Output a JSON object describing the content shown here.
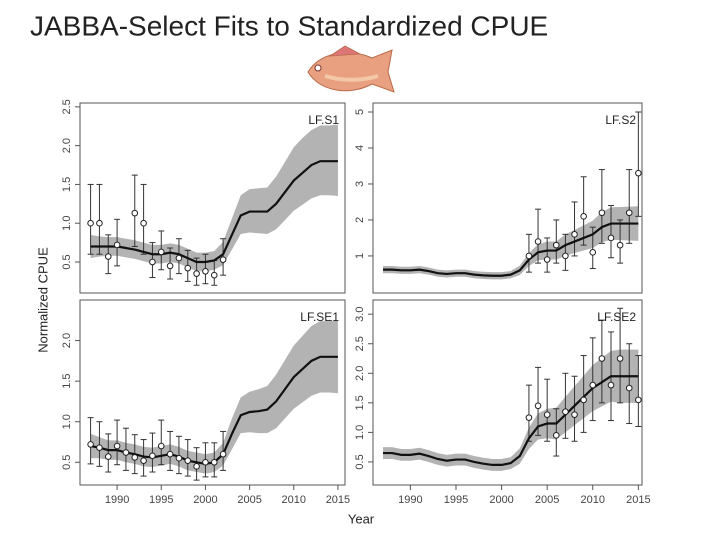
{
  "title": "JABBA-Select Fits to Standardized CPUE",
  "y_label": "Normalized CPUE",
  "x_label": "Year",
  "chart_data": [
    {
      "type": "line",
      "label": "LF.S1",
      "xlim": [
        1985.8,
        2015.8
      ],
      "ylim": [
        0.1,
        2.55
      ],
      "yticks": [
        0.5,
        {
          "value": 1,
          "label": "1.0"
        },
        1.5,
        {
          "value": 2,
          "label": "2.0"
        },
        2.5
      ],
      "x": [
        1987,
        1988,
        1989,
        1990,
        1991,
        1992,
        1993,
        1994,
        1995,
        1996,
        1997,
        1998,
        1999,
        2000,
        2001,
        2002,
        2003,
        2004,
        2005,
        2006,
        2007,
        2008,
        2009,
        2010,
        2011,
        2012,
        2013,
        2014,
        2015
      ],
      "fit": [
        0.7,
        0.7,
        0.7,
        0.7,
        0.68,
        0.66,
        0.63,
        0.6,
        0.6,
        0.62,
        0.6,
        0.55,
        0.5,
        0.5,
        0.52,
        0.6,
        0.85,
        1.1,
        1.15,
        1.15,
        1.15,
        1.25,
        1.4,
        1.55,
        1.65,
        1.75,
        1.8,
        1.8,
        1.8
      ],
      "fit_lower": [
        0.55,
        0.57,
        0.58,
        0.58,
        0.56,
        0.54,
        0.51,
        0.48,
        0.48,
        0.5,
        0.48,
        0.43,
        0.38,
        0.38,
        0.4,
        0.46,
        0.66,
        0.86,
        0.88,
        0.87,
        0.86,
        0.92,
        1.04,
        1.16,
        1.24,
        1.32,
        1.36,
        1.36,
        1.35
      ],
      "fit_upper": [
        0.85,
        0.83,
        0.82,
        0.82,
        0.8,
        0.78,
        0.75,
        0.72,
        0.72,
        0.74,
        0.72,
        0.67,
        0.62,
        0.62,
        0.64,
        0.76,
        1.06,
        1.36,
        1.44,
        1.45,
        1.46,
        1.6,
        1.79,
        1.98,
        2.1,
        2.2,
        2.26,
        2.26,
        2.27
      ],
      "obs_years": [
        1987,
        1988,
        1989,
        1990,
        1992,
        1993,
        1994,
        1995,
        1996,
        1997,
        1998,
        1999,
        2000,
        2001,
        2002
      ],
      "obs": [
        1.0,
        1.0,
        0.57,
        0.72,
        1.13,
        1.0,
        0.5,
        0.63,
        0.45,
        0.55,
        0.42,
        0.35,
        0.38,
        0.33,
        0.53
      ],
      "obs_lower": [
        0.6,
        0.6,
        0.35,
        0.45,
        0.7,
        0.6,
        0.3,
        0.4,
        0.28,
        0.35,
        0.25,
        0.2,
        0.22,
        0.2,
        0.33
      ],
      "obs_upper": [
        1.5,
        1.5,
        0.85,
        1.05,
        1.62,
        1.5,
        0.75,
        0.9,
        0.68,
        0.8,
        0.65,
        0.55,
        0.6,
        0.52,
        0.8
      ]
    },
    {
      "type": "line",
      "label": "LF.S2",
      "xlim": [
        1985.9,
        2015.4
      ],
      "ylim": [
        -0.03,
        5.25
      ],
      "yticks": [
        1,
        2,
        3,
        4,
        5
      ],
      "x": [
        1987,
        1988,
        1989,
        1990,
        1991,
        1992,
        1993,
        1994,
        1995,
        1996,
        1997,
        1998,
        1999,
        2000,
        2001,
        2002,
        2003,
        2004,
        2005,
        2006,
        2007,
        2008,
        2009,
        2010,
        2011,
        2012,
        2013,
        2014,
        2015
      ],
      "fit": [
        0.62,
        0.62,
        0.6,
        0.6,
        0.62,
        0.58,
        0.52,
        0.5,
        0.52,
        0.52,
        0.48,
        0.46,
        0.45,
        0.45,
        0.48,
        0.6,
        0.9,
        1.1,
        1.15,
        1.15,
        1.3,
        1.4,
        1.5,
        1.6,
        1.8,
        1.9,
        1.9,
        1.9,
        1.9
      ],
      "fit_lower": [
        0.52,
        0.52,
        0.5,
        0.5,
        0.52,
        0.48,
        0.42,
        0.4,
        0.42,
        0.42,
        0.38,
        0.36,
        0.35,
        0.35,
        0.38,
        0.47,
        0.72,
        0.88,
        0.9,
        0.9,
        1.0,
        1.08,
        1.15,
        1.22,
        1.38,
        1.45,
        1.44,
        1.43,
        1.42
      ],
      "fit_upper": [
        0.72,
        0.72,
        0.7,
        0.7,
        0.72,
        0.68,
        0.62,
        0.6,
        0.62,
        0.62,
        0.58,
        0.56,
        0.55,
        0.55,
        0.58,
        0.73,
        1.08,
        1.32,
        1.4,
        1.4,
        1.6,
        1.72,
        1.85,
        1.98,
        2.22,
        2.35,
        2.36,
        2.37,
        2.38
      ],
      "obs_years": [
        2003,
        2004,
        2005,
        2006,
        2007,
        2008,
        2009,
        2010,
        2011,
        2012,
        2013,
        2014,
        2015
      ],
      "obs": [
        1.0,
        1.4,
        0.9,
        1.3,
        1.0,
        1.6,
        2.1,
        1.1,
        2.2,
        1.5,
        1.3,
        2.2,
        3.3
      ],
      "obs_lower": [
        0.55,
        0.8,
        0.55,
        0.8,
        0.6,
        1.0,
        1.3,
        0.65,
        1.35,
        0.95,
        0.8,
        1.35,
        2.1
      ],
      "obs_upper": [
        1.6,
        2.3,
        1.5,
        2.0,
        1.6,
        2.5,
        3.2,
        1.8,
        3.4,
        2.4,
        2.0,
        3.4,
        5.0
      ]
    },
    {
      "type": "line",
      "label": "LF.SE1",
      "xlim": [
        1985.8,
        2015.8
      ],
      "ylim": [
        0.22,
        2.5
      ],
      "xticks": [
        1990,
        1995,
        2000,
        2005,
        2010,
        2015
      ],
      "yticks": [
        0.5,
        {
          "value": 1,
          "label": "1.0"
        },
        1.5,
        {
          "value": 2,
          "label": "2.0"
        }
      ],
      "x": [
        1987,
        1988,
        1989,
        1990,
        1991,
        1992,
        1993,
        1994,
        1995,
        1996,
        1997,
        1998,
        1999,
        2000,
        2001,
        2002,
        2003,
        2004,
        2005,
        2006,
        2007,
        2008,
        2009,
        2010,
        2011,
        2012,
        2013,
        2014,
        2015
      ],
      "fit": [
        0.7,
        0.68,
        0.65,
        0.65,
        0.62,
        0.6,
        0.57,
        0.56,
        0.58,
        0.6,
        0.57,
        0.52,
        0.5,
        0.48,
        0.5,
        0.6,
        0.85,
        1.08,
        1.12,
        1.13,
        1.15,
        1.25,
        1.4,
        1.55,
        1.65,
        1.75,
        1.8,
        1.8,
        1.8
      ],
      "fit_lower": [
        0.55,
        0.55,
        0.53,
        0.53,
        0.5,
        0.48,
        0.45,
        0.44,
        0.46,
        0.48,
        0.45,
        0.4,
        0.38,
        0.36,
        0.38,
        0.46,
        0.66,
        0.86,
        0.87,
        0.86,
        0.86,
        0.92,
        1.04,
        1.16,
        1.24,
        1.32,
        1.36,
        1.36,
        1.35
      ],
      "fit_upper": [
        0.85,
        0.81,
        0.77,
        0.77,
        0.74,
        0.72,
        0.69,
        0.68,
        0.7,
        0.72,
        0.69,
        0.64,
        0.62,
        0.6,
        0.62,
        0.74,
        1.04,
        1.3,
        1.37,
        1.4,
        1.44,
        1.58,
        1.76,
        1.94,
        2.06,
        2.18,
        2.24,
        2.24,
        2.25
      ],
      "obs_years": [
        1987,
        1988,
        1989,
        1990,
        1991,
        1992,
        1993,
        1994,
        1995,
        1996,
        1997,
        1998,
        1999,
        2000,
        2001,
        2002
      ],
      "obs": [
        0.72,
        0.68,
        0.57,
        0.7,
        0.62,
        0.56,
        0.52,
        0.58,
        0.7,
        0.6,
        0.55,
        0.52,
        0.45,
        0.5,
        0.5,
        0.6
      ],
      "obs_lower": [
        0.48,
        0.45,
        0.38,
        0.47,
        0.4,
        0.36,
        0.33,
        0.38,
        0.47,
        0.4,
        0.36,
        0.33,
        0.28,
        0.32,
        0.32,
        0.4
      ],
      "obs_upper": [
        1.05,
        1.0,
        0.85,
        1.02,
        0.92,
        0.84,
        0.78,
        0.86,
        1.02,
        0.88,
        0.82,
        0.78,
        0.68,
        0.74,
        0.74,
        0.88
      ]
    },
    {
      "type": "line",
      "label": "LF.SE2",
      "xlim": [
        1985.9,
        2015.4
      ],
      "ylim": [
        0.11,
        3.24
      ],
      "xticks": [
        1990,
        1995,
        2000,
        2005,
        2010,
        2015
      ],
      "yticks": [
        0.5,
        {
          "value": 1,
          "label": "1.0"
        },
        1.5,
        {
          "value": 2,
          "label": "2.0"
        },
        2.5,
        {
          "value": 3,
          "label": "3.0"
        }
      ],
      "x": [
        1987,
        1988,
        1989,
        1990,
        1991,
        1992,
        1993,
        1994,
        1995,
        1996,
        1997,
        1998,
        1999,
        2000,
        2001,
        2002,
        2003,
        2004,
        2005,
        2006,
        2007,
        2008,
        2009,
        2010,
        2011,
        2012,
        2013,
        2014,
        2015
      ],
      "fit": [
        0.65,
        0.65,
        0.62,
        0.62,
        0.64,
        0.6,
        0.55,
        0.52,
        0.54,
        0.54,
        0.5,
        0.47,
        0.45,
        0.45,
        0.48,
        0.6,
        0.9,
        1.1,
        1.15,
        1.15,
        1.3,
        1.45,
        1.6,
        1.75,
        1.85,
        1.95,
        1.95,
        1.95,
        1.95
      ],
      "fit_lower": [
        0.55,
        0.55,
        0.52,
        0.52,
        0.54,
        0.5,
        0.45,
        0.42,
        0.44,
        0.44,
        0.4,
        0.37,
        0.35,
        0.35,
        0.38,
        0.47,
        0.72,
        0.88,
        0.9,
        0.88,
        1.0,
        1.12,
        1.24,
        1.36,
        1.44,
        1.52,
        1.5,
        1.5,
        1.5
      ],
      "fit_upper": [
        0.75,
        0.75,
        0.72,
        0.72,
        0.74,
        0.7,
        0.65,
        0.62,
        0.64,
        0.64,
        0.6,
        0.57,
        0.55,
        0.55,
        0.58,
        0.73,
        1.08,
        1.32,
        1.4,
        1.42,
        1.6,
        1.78,
        1.96,
        2.14,
        2.26,
        2.38,
        2.4,
        2.4,
        2.4
      ],
      "obs_years": [
        2003,
        2004,
        2005,
        2006,
        2007,
        2008,
        2009,
        2010,
        2011,
        2012,
        2013,
        2014,
        2015
      ],
      "obs": [
        1.25,
        1.45,
        1.3,
        0.95,
        1.35,
        1.3,
        1.55,
        1.8,
        2.25,
        1.8,
        2.25,
        1.75,
        1.55
      ],
      "obs_lower": [
        0.85,
        0.95,
        0.85,
        0.6,
        0.9,
        0.85,
        1.0,
        1.2,
        1.5,
        1.2,
        1.5,
        1.15,
        1.1
      ],
      "obs_upper": [
        1.8,
        2.1,
        1.9,
        1.4,
        2.0,
        1.95,
        2.3,
        2.6,
        2.9,
        2.7,
        3.1,
        2.5,
        2.3
      ]
    }
  ]
}
